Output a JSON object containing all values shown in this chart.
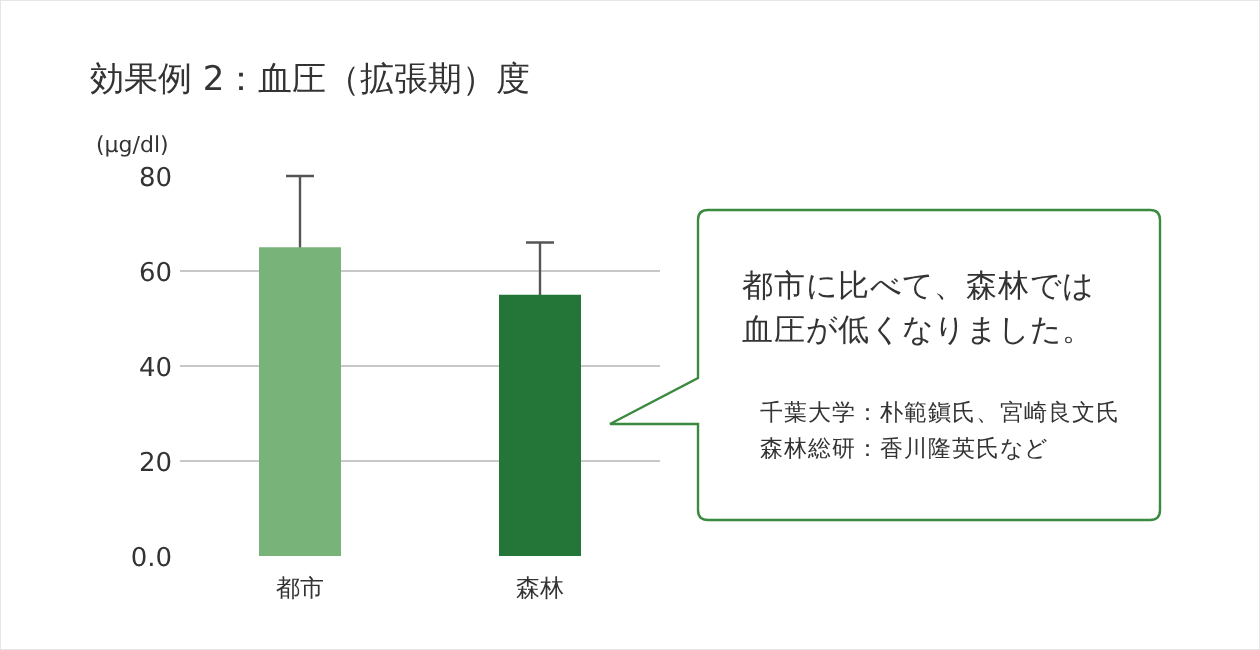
{
  "chart_data": {
    "type": "bar",
    "title": "効果例 2：血圧（拡張期）度",
    "ylabel": "(μg/dl)",
    "categories": [
      "都市",
      "森林"
    ],
    "values": [
      65,
      55
    ],
    "colors": [
      "#78b47a",
      "#237538"
    ],
    "errors": [
      15,
      11
    ],
    "ylim": [
      0,
      80
    ],
    "yticks": [
      {
        "value": 0,
        "label": "0.0"
      },
      20,
      40,
      60,
      80
    ],
    "grid": "y",
    "annotations": [
      "都市に比べて、森林では",
      "血圧が低くなりました。",
      "千葉大学：朴範鎭氏、宮崎良文氏",
      "森林総研：香川隆英氏など"
    ]
  }
}
